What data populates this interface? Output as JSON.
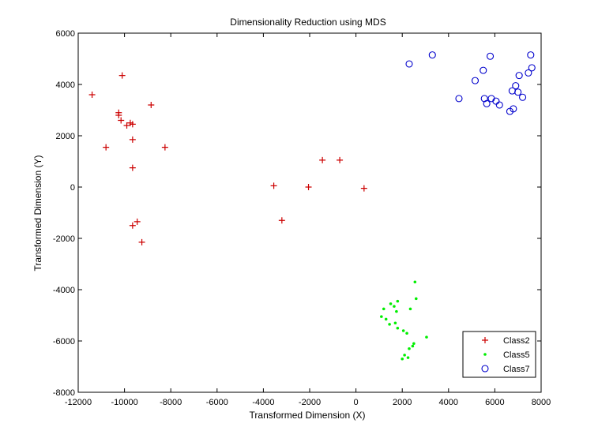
{
  "chart_data": {
    "type": "scatter",
    "title": "Dimensionality Reduction using MDS",
    "xlabel": "Transformed Dimension (X)",
    "ylabel": "Transformed Dimension (Y)",
    "xlim": [
      -12000,
      8000
    ],
    "ylim": [
      -8000,
      6000
    ],
    "xticks": [
      -12000,
      -10000,
      -8000,
      -6000,
      -4000,
      -2000,
      0,
      2000,
      4000,
      6000,
      8000
    ],
    "yticks": [
      -8000,
      -6000,
      -4000,
      -2000,
      0,
      2000,
      4000,
      6000
    ],
    "grid": false,
    "legend_position": "bottom-right",
    "series": [
      {
        "name": "Class2",
        "marker": "plus",
        "color": "#cc0000",
        "points": [
          [
            -11400,
            3600
          ],
          [
            -10100,
            4350
          ],
          [
            -10250,
            2900
          ],
          [
            -10250,
            2800
          ],
          [
            -10150,
            2600
          ],
          [
            -9900,
            2400
          ],
          [
            -9750,
            2500
          ],
          [
            -9650,
            2450
          ],
          [
            -8850,
            3200
          ],
          [
            -10800,
            1550
          ],
          [
            -9650,
            1850
          ],
          [
            -8250,
            1550
          ],
          [
            -9650,
            750
          ],
          [
            -9450,
            -1350
          ],
          [
            -9650,
            -1500
          ],
          [
            -9250,
            -2150
          ],
          [
            -3550,
            50
          ],
          [
            -3200,
            -1300
          ],
          [
            -2050,
            0
          ],
          [
            -1450,
            1050
          ],
          [
            -700,
            1050
          ],
          [
            350,
            -50
          ]
        ]
      },
      {
        "name": "Class5",
        "marker": "dot",
        "color": "#00ee00",
        "points": [
          [
            2550,
            -3700
          ],
          [
            2600,
            -4350
          ],
          [
            2350,
            -4750
          ],
          [
            1500,
            -4550
          ],
          [
            1650,
            -4650
          ],
          [
            1800,
            -4450
          ],
          [
            1750,
            -4850
          ],
          [
            1200,
            -4750
          ],
          [
            1100,
            -5050
          ],
          [
            1300,
            -5150
          ],
          [
            1450,
            -5350
          ],
          [
            1700,
            -5300
          ],
          [
            1800,
            -5500
          ],
          [
            2050,
            -5600
          ],
          [
            2200,
            -5700
          ],
          [
            3050,
            -5850
          ],
          [
            2500,
            -6100
          ],
          [
            2450,
            -6200
          ],
          [
            2300,
            -6300
          ],
          [
            2100,
            -6550
          ],
          [
            2250,
            -6650
          ],
          [
            2000,
            -6700
          ]
        ]
      },
      {
        "name": "Class7",
        "marker": "circle",
        "color": "#0000cc",
        "points": [
          [
            2300,
            4800
          ],
          [
            3300,
            5150
          ],
          [
            5800,
            5100
          ],
          [
            7550,
            5150
          ],
          [
            7600,
            4650
          ],
          [
            7450,
            4450
          ],
          [
            7050,
            4350
          ],
          [
            5500,
            4550
          ],
          [
            5150,
            4150
          ],
          [
            6900,
            3950
          ],
          [
            6750,
            3750
          ],
          [
            7000,
            3700
          ],
          [
            7200,
            3500
          ],
          [
            4450,
            3450
          ],
          [
            5550,
            3450
          ],
          [
            5850,
            3450
          ],
          [
            6050,
            3350
          ],
          [
            5650,
            3250
          ],
          [
            6200,
            3200
          ],
          [
            6800,
            3050
          ],
          [
            6650,
            2950
          ]
        ]
      }
    ]
  }
}
